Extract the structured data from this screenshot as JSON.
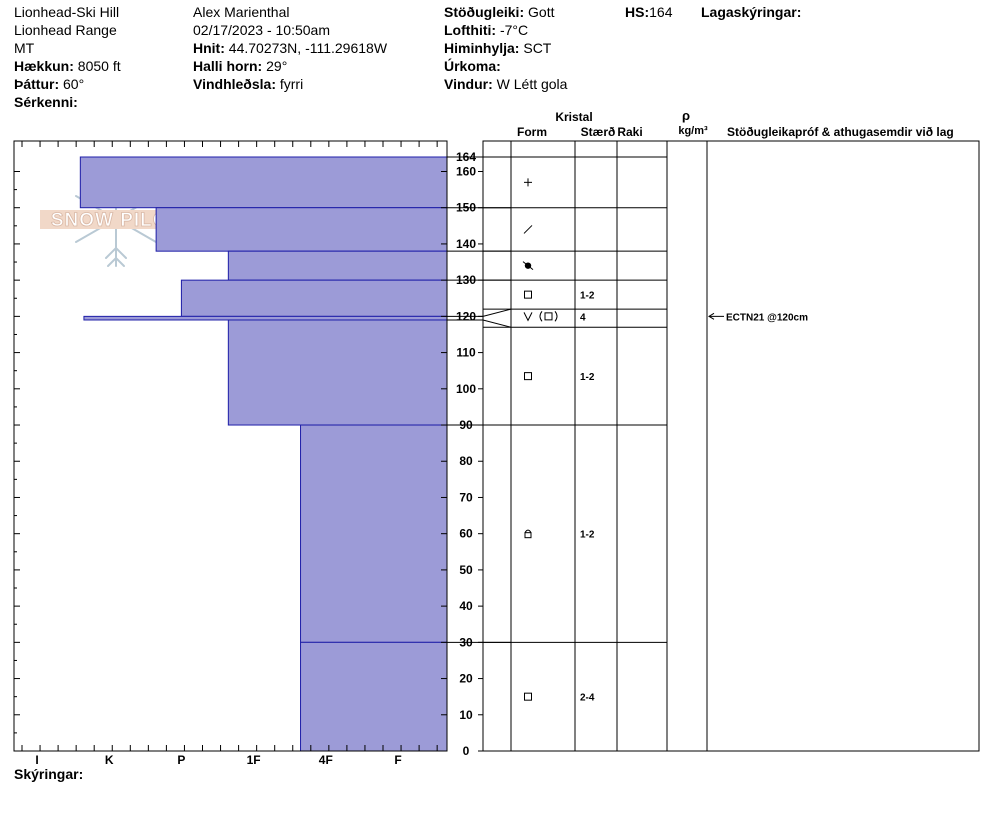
{
  "header": {
    "col1": {
      "location": "Lionhead-Ski Hill",
      "range": "Lionhead Range",
      "state": "MT",
      "elevation_label": "Hækkun:",
      "elevation_value": "8050 ft",
      "aspect_label": "Þáttur:",
      "aspect_value": "60°",
      "special_label": "Sérkenni:"
    },
    "col2": {
      "observer": "Alex Marienthal",
      "datetime": "02/17/2023 - 10:50am",
      "coords_label": "Hnit:",
      "coords_value": "44.70273N, -111.29618W",
      "slope_label": "Halli horn:",
      "slope_value": "29°",
      "wind_loading_label": "Vindhleðsla:",
      "wind_loading_value": "fyrri"
    },
    "col3": {
      "stability_label": "Stöðugleiki:",
      "stability_value": "Gott",
      "air_temp_label": "Lofthiti:",
      "air_temp_value": "-7°C",
      "sky_label": "Himinhylja:",
      "sky_value": "SCT",
      "precip_label": "Úrkoma:",
      "precip_value": "",
      "wind_label": "Vindur:",
      "wind_value": "W Létt gola"
    },
    "hs_label": "HS:",
    "hs_value": "164",
    "layers_label": "Lagaskýringar:"
  },
  "logo": {
    "text": "SNOW PILOT"
  },
  "columns": {
    "crystal": "Kristal",
    "form": "Form",
    "size": "Stærð",
    "moisture": "Raki",
    "rho": "ρ",
    "density_unit": "kg/m³",
    "comments": "Stöðugleikapróf & athugasemdir við lag"
  },
  "footer": {
    "notes_label": "Skýringar:"
  },
  "chart_data": {
    "type": "bar",
    "orientation": "horizontal",
    "x_categories": [
      "I",
      "K",
      "P",
      "1F",
      "4F",
      "F"
    ],
    "y_ticks": [
      0,
      10,
      20,
      30,
      40,
      50,
      60,
      70,
      80,
      90,
      100,
      110,
      120,
      130,
      140,
      150,
      160
    ],
    "y_top_label": "164",
    "ylim": [
      0,
      164
    ],
    "hardness_layers": [
      {
        "bottom": 150,
        "top": 164,
        "hardness": 0.6
      },
      {
        "bottom": 138,
        "top": 150,
        "hardness": 1.65
      },
      {
        "bottom": 130,
        "top": 138,
        "hardness": 2.65
      },
      {
        "bottom": 120,
        "top": 130,
        "hardness": 2.0
      },
      {
        "bottom": 119,
        "top": 120,
        "hardness": 0.65
      },
      {
        "bottom": 90,
        "top": 119,
        "hardness": 2.65
      },
      {
        "bottom": 30,
        "top": 90,
        "hardness": 3.65
      },
      {
        "bottom": 0,
        "top": 30,
        "hardness": 3.65
      }
    ],
    "layer_boundaries": [
      164,
      150,
      138,
      130,
      122,
      117,
      90,
      30,
      0
    ],
    "grain_rows": [
      {
        "center": 157,
        "form": "+",
        "size": ""
      },
      {
        "center": 144,
        "form": "/",
        "size": ""
      },
      {
        "center": 134,
        "form": "melt",
        "size": ""
      },
      {
        "center": 126,
        "form": "square",
        "size": "1-2"
      },
      {
        "center": 120,
        "form": "surface-hoar-faceted",
        "size": "4"
      },
      {
        "center": 103.5,
        "form": "square",
        "size": "1-2"
      },
      {
        "center": 60,
        "form": "rounding-facet",
        "size": "1-2"
      },
      {
        "center": 15,
        "form": "square",
        "size": "2-4"
      }
    ],
    "stability_tests": [
      {
        "depth": 120,
        "text": "ECTN21 @120cm"
      }
    ]
  }
}
